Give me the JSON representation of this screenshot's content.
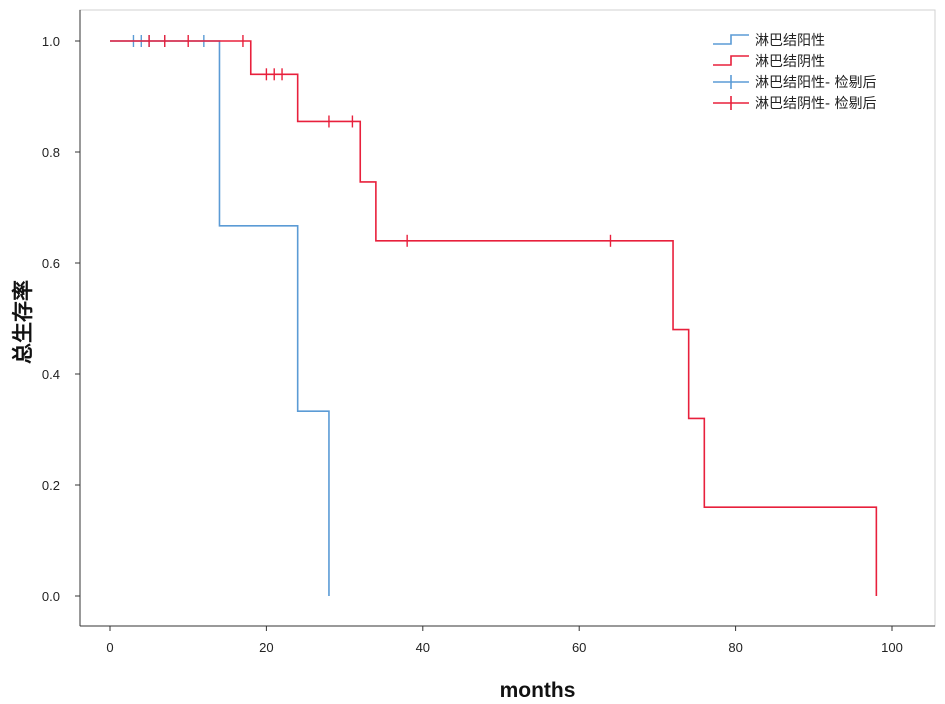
{
  "chart_data": {
    "type": "line",
    "subtype": "kaplan-meier-survival",
    "xlabel": "months",
    "ylabel": "总生存率",
    "xlim": [
      0,
      100
    ],
    "ylim": [
      0,
      1
    ],
    "xticks": [
      "0",
      "20",
      "40",
      "60",
      "80",
      "100"
    ],
    "yticks": [
      "0.0",
      "0.2",
      "0.4",
      "0.6",
      "0.8",
      "1.0"
    ],
    "grid": false,
    "legend_position": "top-right",
    "legend": [
      "淋巴结阳性",
      "淋巴结阴性",
      "淋巴结阳性- 检剔后",
      "淋巴结阴性- 检剔后"
    ],
    "series": [
      {
        "name": "淋巴结阳性",
        "color": "#5b9bd5",
        "steps": [
          [
            0,
            1.0
          ],
          [
            14,
            0.667
          ],
          [
            24,
            0.333
          ],
          [
            28,
            0.0
          ]
        ],
        "end_x": 28,
        "censored": [
          3,
          4,
          5,
          7,
          12
        ]
      },
      {
        "name": "淋巴结阴性",
        "color": "#e8203c",
        "steps": [
          [
            0,
            1.0
          ],
          [
            18,
            0.94
          ],
          [
            24,
            0.855
          ],
          [
            32,
            0.746
          ],
          [
            34,
            0.64
          ],
          [
            72,
            0.48
          ],
          [
            74,
            0.32
          ],
          [
            76,
            0.16
          ],
          [
            98,
            0.0
          ]
        ],
        "end_x": 98,
        "censored": [
          5,
          7,
          10,
          17,
          20,
          21,
          22,
          28,
          31,
          38,
          64
        ]
      }
    ]
  }
}
